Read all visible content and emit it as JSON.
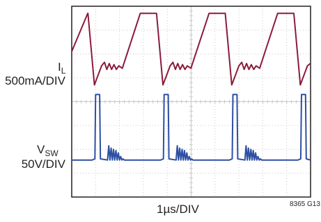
{
  "labels": {
    "il_symbol": "I",
    "il_subscript": "L",
    "il_scale": "500mA/DIV",
    "vsw_symbol": "V",
    "vsw_subscript": "SW",
    "vsw_scale": "50V/DIV",
    "time_scale": "1µs/DIV",
    "figure_id": "8365 G13"
  },
  "colors": {
    "il_trace": "#8b1a3c",
    "vsw_trace": "#2e4fa3",
    "grid": "#c8c8c8",
    "frame": "#231f20"
  },
  "chart_data": {
    "type": "line",
    "grid": true,
    "xlim": [
      0,
      10
    ],
    "xunit": "div",
    "ylim": [
      0,
      8
    ],
    "yunit": "div",
    "series": [
      {
        "name": "IL",
        "x": [
          0,
          0.67,
          0.68,
          0.95,
          1.1,
          1.25,
          1.37,
          1.47,
          1.57,
          1.67,
          1.77,
          1.87,
          1.97,
          2.12,
          2.87,
          3.54,
          3.55,
          3.82,
          3.97,
          4.12,
          4.24,
          4.34,
          4.44,
          4.54,
          4.64,
          4.74,
          4.84,
          4.99,
          5.75,
          6.42,
          6.43,
          6.7,
          6.85,
          7.0,
          7.12,
          7.22,
          7.32,
          7.42,
          7.52,
          7.62,
          7.72,
          7.87,
          8.62,
          9.29,
          9.3,
          9.57,
          9.72,
          9.87,
          9.99
        ],
        "y": [
          6.1,
          7.7,
          7.7,
          4.7,
          5.1,
          5.5,
          5.65,
          5.35,
          5.6,
          5.35,
          5.55,
          5.35,
          5.5,
          5.4,
          7.7,
          7.7,
          7.7,
          4.7,
          5.1,
          5.5,
          5.65,
          5.35,
          5.6,
          5.35,
          5.55,
          5.35,
          5.5,
          5.4,
          7.7,
          7.7,
          7.7,
          4.7,
          5.1,
          5.5,
          5.65,
          5.35,
          5.6,
          5.35,
          5.55,
          5.35,
          5.5,
          5.4,
          7.7,
          7.7,
          7.7,
          4.7,
          5.1,
          5.5,
          5.6
        ]
      },
      {
        "name": "VSW",
        "x": [
          0,
          0.85,
          0.97,
          1.0,
          1.17,
          1.2,
          1.5,
          1.55,
          1.6,
          1.65,
          1.7,
          1.75,
          1.8,
          1.85,
          1.9,
          1.95,
          2.0,
          2.05,
          2.1,
          2.15,
          2.2,
          3.72,
          3.84,
          3.87,
          4.04,
          4.07,
          4.37,
          4.42,
          4.47,
          4.52,
          4.57,
          4.62,
          4.67,
          4.72,
          4.77,
          4.82,
          4.87,
          4.92,
          4.97,
          5.02,
          5.07,
          6.6,
          6.72,
          6.75,
          6.92,
          6.95,
          7.25,
          7.3,
          7.35,
          7.4,
          7.45,
          7.5,
          7.55,
          7.6,
          7.65,
          7.7,
          7.75,
          7.8,
          7.85,
          7.9,
          7.95,
          9.47,
          9.59,
          9.62,
          9.79,
          9.82,
          10.0
        ],
        "y": [
          1.55,
          1.55,
          1.6,
          4.3,
          4.3,
          1.6,
          1.55,
          2.15,
          1.55,
          2.05,
          1.55,
          2.0,
          1.55,
          1.95,
          1.55,
          1.85,
          1.55,
          1.7,
          1.55,
          1.6,
          1.55,
          1.55,
          1.6,
          4.3,
          4.3,
          1.6,
          1.55,
          2.15,
          1.55,
          2.05,
          1.55,
          2.0,
          1.55,
          1.95,
          1.55,
          1.85,
          1.55,
          1.7,
          1.55,
          1.6,
          1.55,
          1.55,
          1.6,
          4.3,
          4.3,
          1.6,
          1.55,
          2.15,
          1.55,
          2.05,
          1.55,
          2.0,
          1.55,
          1.95,
          1.55,
          1.85,
          1.55,
          1.7,
          1.55,
          1.6,
          1.55,
          1.55,
          1.6,
          4.3,
          4.3,
          1.6,
          1.55
        ]
      }
    ]
  }
}
